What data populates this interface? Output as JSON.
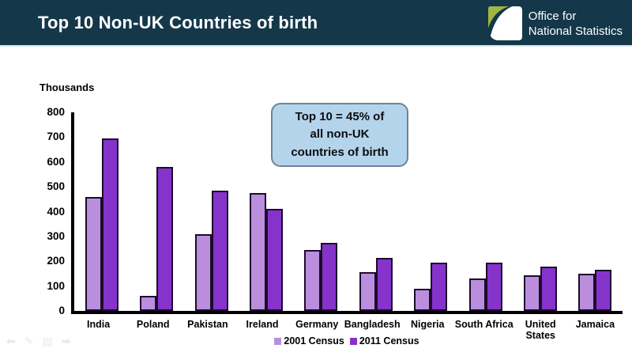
{
  "header": {
    "title": "Top 10 Non-UK Countries of birth",
    "logo": {
      "line1": "Office for",
      "line2": "National Statistics"
    }
  },
  "callout": {
    "text": "Top 10 = 45% of\nall non-UK\ncountries of birth"
  },
  "chart_data": {
    "type": "bar",
    "unit_label": "Thousands",
    "categories": [
      "India",
      "Poland",
      "Pakistan",
      "Ireland",
      "Germany",
      "Bangladesh",
      "Nigeria",
      "South Africa",
      "United States",
      "Jamaica"
    ],
    "series": [
      {
        "name": "2001 Census",
        "color": "#bb8edd",
        "values": [
          460,
          60,
          310,
          475,
          245,
          155,
          90,
          130,
          145,
          150
        ]
      },
      {
        "name": "2011 Census",
        "color": "#8633cc",
        "values": [
          695,
          580,
          485,
          410,
          275,
          215,
          195,
          195,
          180,
          165
        ]
      }
    ],
    "ylim": [
      0,
      800
    ],
    "yticks": [
      0,
      100,
      200,
      300,
      400,
      500,
      600,
      700,
      800
    ],
    "grid": false,
    "legend_position": "bottom",
    "two_line_labels": [
      "United States"
    ]
  },
  "colors": {
    "header_bg": "#14384a",
    "logo_green": "#a2b544",
    "bar_outline": "#1c0b2b",
    "callout_bg": "#b4d4ec",
    "callout_border": "#6e8494",
    "axis": "#000000"
  },
  "presenter_controls": {
    "prev": "⬅",
    "pen": "✎",
    "menu": "▤",
    "next": "➡"
  }
}
